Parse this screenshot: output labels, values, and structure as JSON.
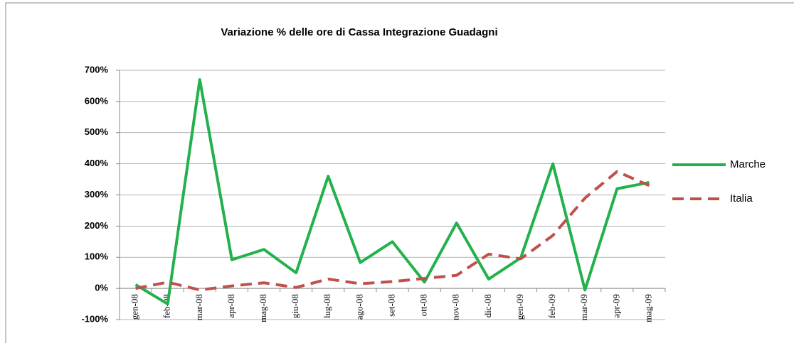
{
  "chart_data": {
    "type": "line",
    "title": "Variazione  % delle ore di Cassa Integrazione Guadagni",
    "categories": [
      "gen-08",
      "feb-08",
      "mar-08",
      "apr-08",
      "mag-08",
      "giu-08",
      "lug-08",
      "ago-08",
      "set-08",
      "ott-08",
      "nov-08",
      "dic-08",
      "gen-09",
      "feb-09",
      "mar-09",
      "apr-09",
      "mag-09"
    ],
    "series": [
      {
        "name": "Marche",
        "color": "#22b14c",
        "dash": false,
        "values": [
          12,
          -50,
          670,
          92,
          125,
          50,
          360,
          83,
          150,
          20,
          210,
          30,
          98,
          400,
          -5,
          320,
          340
        ]
      },
      {
        "name": "Italia",
        "color": "#c0504d",
        "dash": true,
        "values": [
          0,
          20,
          -5,
          8,
          18,
          3,
          30,
          15,
          22,
          32,
          42,
          110,
          95,
          170,
          290,
          375,
          330
        ]
      }
    ],
    "ylim": [
      -100,
      700
    ],
    "yticks": [
      {
        "value": -100,
        "label": "-100%"
      },
      {
        "value": 0,
        "label": "0%"
      },
      {
        "value": 100,
        "label": "100%"
      },
      {
        "value": 200,
        "label": "200%"
      },
      {
        "value": 300,
        "label": "300%"
      },
      {
        "value": 400,
        "label": "400%"
      },
      {
        "value": 500,
        "label": "500%"
      },
      {
        "value": 600,
        "label": "600%"
      },
      {
        "value": 700,
        "label": "700%"
      }
    ],
    "grid": true,
    "legend": "right"
  }
}
